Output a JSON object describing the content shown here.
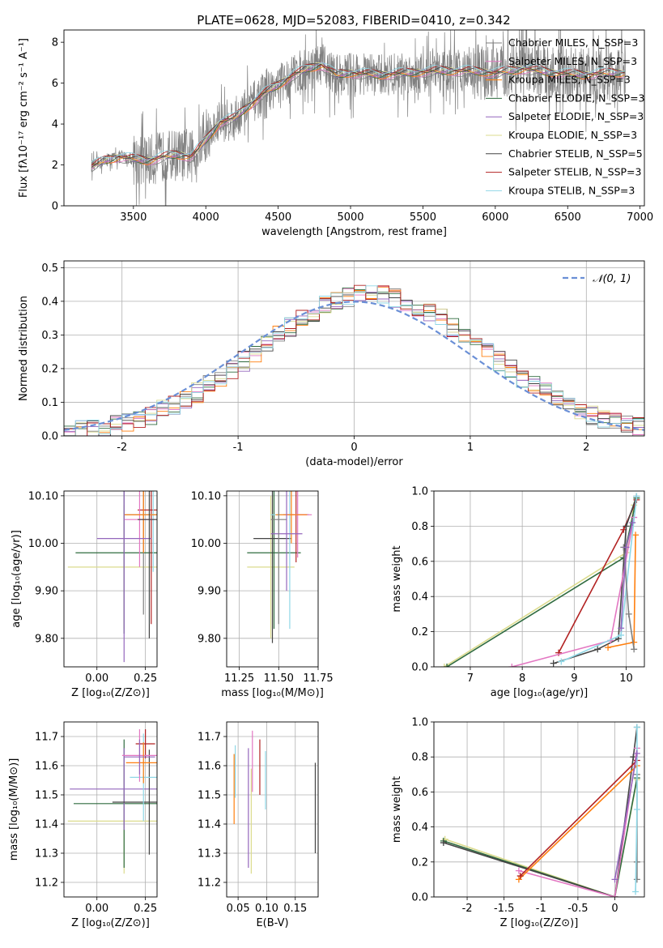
{
  "title": "PLATE=0628, MJD=52083, FIBERID=0410, z=0.342",
  "colors": {
    "chabrier_miles": "#7f7f7f",
    "salpeter_miles": "#e377c2",
    "kroupa_miles": "#ff7f0e",
    "chabrier_elodie": "#2f6b3f",
    "salpeter_elodie": "#9467bd",
    "kroupa_elodie": "#dbdb8d",
    "chabrier_stelib": "#444444",
    "salpeter_stelib": "#b22222",
    "kroupa_stelib": "#8fd7e6",
    "normal_curve": "#6a8fd6",
    "data_spectrum": "#808080"
  },
  "chart_data": [
    {
      "id": "spectrum",
      "type": "line",
      "xlabel": "wavelength [Angstrom, rest frame]",
      "ylabel": "Flux [fλ10⁻¹⁷ erg cm⁻² s⁻¹ A⁻¹]",
      "xlim": [
        3020,
        7030
      ],
      "ylim": [
        0,
        8.6
      ],
      "xticks": [
        3500,
        4000,
        4500,
        5000,
        5500,
        6000,
        6500,
        7000
      ],
      "yticks": [
        0,
        2,
        4,
        6,
        8
      ],
      "legend_position": "right",
      "legend": [
        "Chabrier MILES, N_SSP=3",
        "Salpeter MILES, N_SSP=3",
        "Kroupa MILES, N_SSP=3",
        "Chabrier ELODIE, N_SSP=3",
        "Salpeter ELODIE, N_SSP=3",
        "Kroupa ELODIE, N_SSP=3",
        "Chabrier STELIB, N_SSP=5",
        "Salpeter STELIB, N_SSP=3",
        "Kroupa STELIB, N_SSP=3"
      ],
      "model_continuum": {
        "x": [
          3200,
          3300,
          3400,
          3500,
          3600,
          3700,
          3800,
          3900,
          4000,
          4100,
          4200,
          4300,
          4400,
          4500,
          4600,
          4700,
          4800,
          4900,
          5000,
          5200,
          5400,
          5600,
          5800,
          6000,
          6200,
          6400,
          6600,
          6800
        ],
        "y": [
          1.9,
          2.2,
          2.4,
          2.3,
          2.2,
          2.4,
          2.5,
          2.4,
          3.2,
          4.1,
          4.3,
          4.9,
          5.5,
          5.9,
          6.4,
          6.7,
          6.9,
          6.4,
          6.5,
          6.4,
          6.5,
          6.6,
          6.6,
          6.5,
          6.7,
          6.5,
          6.4,
          6.5
        ]
      }
    },
    {
      "id": "residual_histogram",
      "type": "bar",
      "xlabel": "(data-model)/error",
      "ylabel": "Normed distribution",
      "xlim": [
        -2.5,
        2.5
      ],
      "ylim": [
        0,
        0.52
      ],
      "xticks": [
        -2,
        -1,
        0,
        1,
        2
      ],
      "yticks": [
        0.0,
        0.1,
        0.2,
        0.3,
        0.4,
        0.5
      ],
      "grid": true,
      "legend_position": "top-right",
      "legend": [
        "𝒩(0, 1)"
      ],
      "bin_width": 0.1,
      "bin_start": -2.5,
      "series": [
        {
          "values": [
            0.01,
            0.02,
            0.03,
            0.04,
            0.05,
            0.06,
            0.07,
            0.08,
            0.08,
            0.09,
            0.11,
            0.13,
            0.14,
            0.16,
            0.18,
            0.2,
            0.22,
            0.24,
            0.26,
            0.28,
            0.3,
            0.31,
            0.33,
            0.35,
            0.37,
            0.38,
            0.39,
            0.4,
            0.41,
            0.41,
            0.42,
            0.43,
            0.43,
            0.42,
            0.41,
            0.4,
            0.38,
            0.35,
            0.32,
            0.29,
            0.26,
            0.23,
            0.2,
            0.17,
            0.15,
            0.13,
            0.11,
            0.1,
            0.09,
            0.08,
            0.07,
            0.06,
            0.05,
            0.05,
            0.04,
            0.04,
            0.03,
            0.03,
            0.02,
            0.02,
            0.02,
            0.02,
            0.02,
            0.02,
            0.02,
            0.02,
            0.02,
            0.02,
            0.02,
            0.02,
            0.02,
            0.02,
            0.02,
            0.02,
            0.02,
            0.02,
            0.02,
            0.02,
            0.02,
            0.02,
            0.02,
            0.02,
            0.02,
            0.02,
            0.02,
            0.02,
            0.02,
            0.02,
            0.02,
            0.02,
            0.02,
            0.02,
            0.02,
            0.02,
            0.02,
            0.02,
            0.02,
            0.02,
            0.02,
            0.02
          ]
        }
      ],
      "normal_curve": {
        "mean": 0,
        "sigma": 1
      }
    },
    {
      "id": "age_vs_Z",
      "type": "scatter",
      "xlabel": "Z [log₁₀(Z/Z⊙)]",
      "ylabel": "age  [log₁₀(age/yr)]",
      "xlim": [
        -0.17,
        0.31
      ],
      "ylim": [
        9.74,
        10.11
      ],
      "xticks": [
        0.0,
        0.25
      ],
      "xticklabels": [
        "0.00",
        "0.25"
      ],
      "yticks": [
        9.8,
        9.9,
        10.0,
        10.1
      ],
      "grid": true,
      "points": [
        {
          "x": 0.14,
          "y": 9.95,
          "xerr": 0.29,
          "yerr": 0.13,
          "color": "kroupa_elodie"
        },
        {
          "x": 0.14,
          "y": 9.98,
          "xerr": 0.25,
          "yerr": 0.17,
          "color": "chabrier_elodie"
        },
        {
          "x": 0.24,
          "y": 10.06,
          "xerr": 0.1,
          "yerr": 0.21,
          "color": "chabrier_miles"
        },
        {
          "x": 0.28,
          "y": 10.07,
          "xerr": 0.07,
          "yerr": 0.24,
          "color": "salpeter_stelib"
        },
        {
          "x": 0.29,
          "y": 10.06,
          "xerr": 0.07,
          "yerr": 0.12,
          "color": "kroupa_stelib"
        },
        {
          "x": 0.22,
          "y": 10.05,
          "xerr": 0.08,
          "yerr": 0.1,
          "color": "salpeter_miles"
        },
        {
          "x": 0.24,
          "y": 10.06,
          "xerr": 0.1,
          "yerr": 0.08,
          "color": "kroupa_miles"
        },
        {
          "x": 0.14,
          "y": 10.01,
          "xerr": 0.14,
          "yerr": 0.26,
          "color": "salpeter_elodie"
        },
        {
          "x": 0.27,
          "y": 10.05,
          "xerr": 0.06,
          "yerr": 0.25,
          "color": "chabrier_stelib"
        }
      ]
    },
    {
      "id": "age_vs_mass",
      "type": "scatter",
      "xlabel": "mass [log₁₀(M/M⊙)]",
      "ylabel": "",
      "xlim": [
        11.17,
        11.75
      ],
      "ylim": [
        9.74,
        10.11
      ],
      "xticks": [
        11.25,
        11.5,
        11.75
      ],
      "xticklabels": [
        "11.25",
        "11.50",
        "11.75"
      ],
      "yticks": [
        9.8,
        9.9,
        10.0,
        10.1
      ],
      "grid": true,
      "points": [
        {
          "x": 11.45,
          "y": 9.95,
          "xerr": 0.15,
          "yerr": 0.15,
          "color": "kroupa_elodie"
        },
        {
          "x": 11.47,
          "y": 9.98,
          "xerr": 0.17,
          "yerr": 0.16,
          "color": "chabrier_elodie"
        },
        {
          "x": 11.46,
          "y": 10.01,
          "xerr": 0.12,
          "yerr": 0.22,
          "color": "chabrier_stelib"
        },
        {
          "x": 11.61,
          "y": 10.06,
          "xerr": 0.08,
          "yerr": 0.1,
          "color": "salpeter_stelib"
        },
        {
          "x": 11.57,
          "y": 10.06,
          "xerr": 0.12,
          "yerr": 0.24,
          "color": "kroupa_stelib"
        },
        {
          "x": 11.62,
          "y": 10.06,
          "xerr": 0.09,
          "yerr": 0.09,
          "color": "salpeter_miles"
        },
        {
          "x": 11.58,
          "y": 10.06,
          "xerr": 0.1,
          "yerr": 0.06,
          "color": "kroupa_miles"
        },
        {
          "x": 11.55,
          "y": 10.02,
          "xerr": 0.1,
          "yerr": 0.12,
          "color": "salpeter_elodie"
        },
        {
          "x": 11.5,
          "y": 10.05,
          "xerr": 0.05,
          "yerr": 0.22,
          "color": "chabrier_miles"
        }
      ]
    },
    {
      "id": "mass_weight_vs_age",
      "type": "line",
      "xlabel": "age  [log₁₀(age/yr)]",
      "ylabel": "mass weight",
      "xlim": [
        6.3,
        10.35
      ],
      "ylim": [
        0,
        1.0
      ],
      "xticks": [
        7,
        8,
        9,
        10
      ],
      "yticks": [
        0.0,
        0.2,
        0.4,
        0.6,
        0.8,
        1.0
      ],
      "grid": true,
      "series": [
        {
          "color": "kroupa_elodie",
          "x": [
            6.5,
            10.0,
            10.15
          ],
          "y": [
            0.0,
            0.65,
            0.92
          ]
        },
        {
          "color": "chabrier_elodie",
          "x": [
            6.55,
            9.95,
            10.2
          ],
          "y": [
            0.0,
            0.62,
            0.96
          ]
        },
        {
          "color": "salpeter_stelib",
          "x": [
            8.7,
            9.95,
            10.2
          ],
          "y": [
            0.08,
            0.78,
            0.95
          ]
        },
        {
          "color": "chabrier_stelib",
          "x": [
            8.6,
            9.45,
            9.85,
            10.0,
            10.2
          ],
          "y": [
            0.02,
            0.1,
            0.16,
            0.8,
            0.97
          ]
        },
        {
          "color": "salpeter_miles",
          "x": [
            7.8,
            9.7,
            10.15
          ],
          "y": [
            0.0,
            0.15,
            0.85
          ]
        },
        {
          "color": "kroupa_miles",
          "x": [
            9.65,
            10.15,
            10.18
          ],
          "y": [
            0.11,
            0.14,
            0.75
          ]
        },
        {
          "color": "kroupa_stelib",
          "x": [
            8.75,
            9.9,
            10.2
          ],
          "y": [
            0.03,
            0.18,
            0.97
          ]
        },
        {
          "color": "chabrier_miles",
          "x": [
            9.95,
            10.05,
            10.15
          ],
          "y": [
            0.68,
            0.3,
            0.1
          ]
        },
        {
          "color": "salpeter_elodie",
          "x": [
            9.9,
            10.0,
            10.12
          ],
          "y": [
            0.22,
            0.68,
            0.82
          ]
        }
      ]
    },
    {
      "id": "mass_vs_Z",
      "type": "scatter",
      "xlabel": "Z [log₁₀(Z/Z⊙)]",
      "ylabel": "mass [log₁₀(M/M⊙)]",
      "xlim": [
        -0.17,
        0.31
      ],
      "ylim": [
        11.15,
        11.75
      ],
      "xticks": [
        0.0,
        0.25
      ],
      "xticklabels": [
        "0.00",
        "0.25"
      ],
      "yticks": [
        11.2,
        11.3,
        11.4,
        11.5,
        11.6,
        11.7
      ],
      "grid": true,
      "points": [
        {
          "x": 0.14,
          "y": 11.41,
          "xerr": 0.29,
          "yerr": 0.18,
          "color": "kroupa_elodie"
        },
        {
          "x": 0.14,
          "y": 11.47,
          "xerr": 0.26,
          "yerr": 0.22,
          "color": "chabrier_elodie"
        },
        {
          "x": 0.14,
          "y": 11.52,
          "xerr": 0.28,
          "yerr": 0.14,
          "color": "salpeter_elodie"
        },
        {
          "x": 0.27,
          "y": 11.475,
          "xerr": 0.19,
          "yerr": 0.18,
          "color": "chabrier_stelib"
        },
        {
          "x": 0.25,
          "y": 11.675,
          "xerr": 0.05,
          "yerr": 0.05,
          "color": "salpeter_stelib"
        },
        {
          "x": 0.24,
          "y": 11.56,
          "xerr": 0.07,
          "yerr": 0.15,
          "color": "kroupa_stelib"
        },
        {
          "x": 0.22,
          "y": 11.635,
          "xerr": 0.09,
          "yerr": 0.09,
          "color": "salpeter_miles"
        },
        {
          "x": 0.24,
          "y": 11.61,
          "xerr": 0.09,
          "yerr": 0.07,
          "color": "kroupa_miles"
        },
        {
          "x": 0.22,
          "y": 11.63,
          "xerr": 0.08,
          "yerr": 0.06,
          "color": "salpeter_elodie"
        }
      ]
    },
    {
      "id": "mass_vs_EBV",
      "type": "scatter",
      "xlabel": "E(B-V)",
      "ylabel": "",
      "xlim": [
        0.03,
        0.19
      ],
      "ylim": [
        11.15,
        11.75
      ],
      "xticks": [
        0.05,
        0.1,
        0.15
      ],
      "xticklabels": [
        "0.05",
        "0.10",
        "0.15"
      ],
      "yticks": [
        11.2,
        11.3,
        11.4,
        11.5,
        11.6,
        11.7
      ],
      "grid": true,
      "points": [
        {
          "x": 0.043,
          "y": 11.52,
          "yerr": 0.12,
          "color": "kroupa_miles"
        },
        {
          "x": 0.045,
          "y": 11.58,
          "yerr": 0.09,
          "color": "kroupa_stelib"
        },
        {
          "x": 0.068,
          "y": 11.455,
          "yerr": 0.205,
          "color": "salpeter_elodie"
        },
        {
          "x": 0.073,
          "y": 11.41,
          "yerr": 0.18,
          "color": "kroupa_elodie"
        },
        {
          "x": 0.075,
          "y": 11.615,
          "yerr": 0.105,
          "color": "salpeter_miles"
        },
        {
          "x": 0.088,
          "y": 11.595,
          "yerr": 0.095,
          "color": "salpeter_stelib"
        },
        {
          "x": 0.098,
          "y": 11.55,
          "yerr": 0.1,
          "color": "kroupa_stelib"
        },
        {
          "x": 0.185,
          "y": 11.455,
          "yerr": 0.155,
          "color": "chabrier_stelib"
        }
      ]
    },
    {
      "id": "mass_weight_vs_Z",
      "type": "line",
      "xlabel": "Z [log₁₀(Z/Z⊙)]",
      "ylabel": "mass weight",
      "xlim": [
        -2.45,
        0.4
      ],
      "ylim": [
        0,
        1.0
      ],
      "xticks": [
        -2.0,
        -1.5,
        -1.0,
        -0.5,
        0.0
      ],
      "yticks": [
        0.0,
        0.2,
        0.4,
        0.6,
        0.8,
        1.0
      ],
      "grid": true,
      "series": [
        {
          "color": "kroupa_elodie",
          "x": [
            -2.3,
            0.0,
            0.3
          ],
          "y": [
            0.33,
            0.0,
            0.67
          ]
        },
        {
          "color": "chabrier_elodie",
          "x": [
            -2.32,
            0.0,
            0.3
          ],
          "y": [
            0.32,
            0.0,
            0.68
          ]
        },
        {
          "color": "chabrier_stelib",
          "x": [
            -2.32,
            0.0,
            0.25,
            0.3
          ],
          "y": [
            0.31,
            0.0,
            0.8,
            0.97
          ]
        },
        {
          "color": "salpeter_miles",
          "x": [
            -1.3,
            0.0,
            0.3
          ],
          "y": [
            0.15,
            0.0,
            0.85
          ]
        },
        {
          "color": "kroupa_miles",
          "x": [
            -1.3,
            0.3
          ],
          "y": [
            0.1,
            0.75
          ]
        },
        {
          "color": "salpeter_stelib",
          "x": [
            -1.28,
            0.3
          ],
          "y": [
            0.12,
            0.78
          ]
        },
        {
          "color": "chabrier_miles",
          "x": [
            0.3,
            0.3,
            0.3
          ],
          "y": [
            0.1,
            0.7,
            0.2
          ]
        },
        {
          "color": "kroupa_stelib",
          "x": [
            0.28,
            0.3,
            0.3
          ],
          "y": [
            0.03,
            0.5,
            0.97
          ]
        },
        {
          "color": "salpeter_elodie",
          "x": [
            0.0,
            0.3
          ],
          "y": [
            0.1,
            0.82
          ]
        }
      ]
    }
  ]
}
